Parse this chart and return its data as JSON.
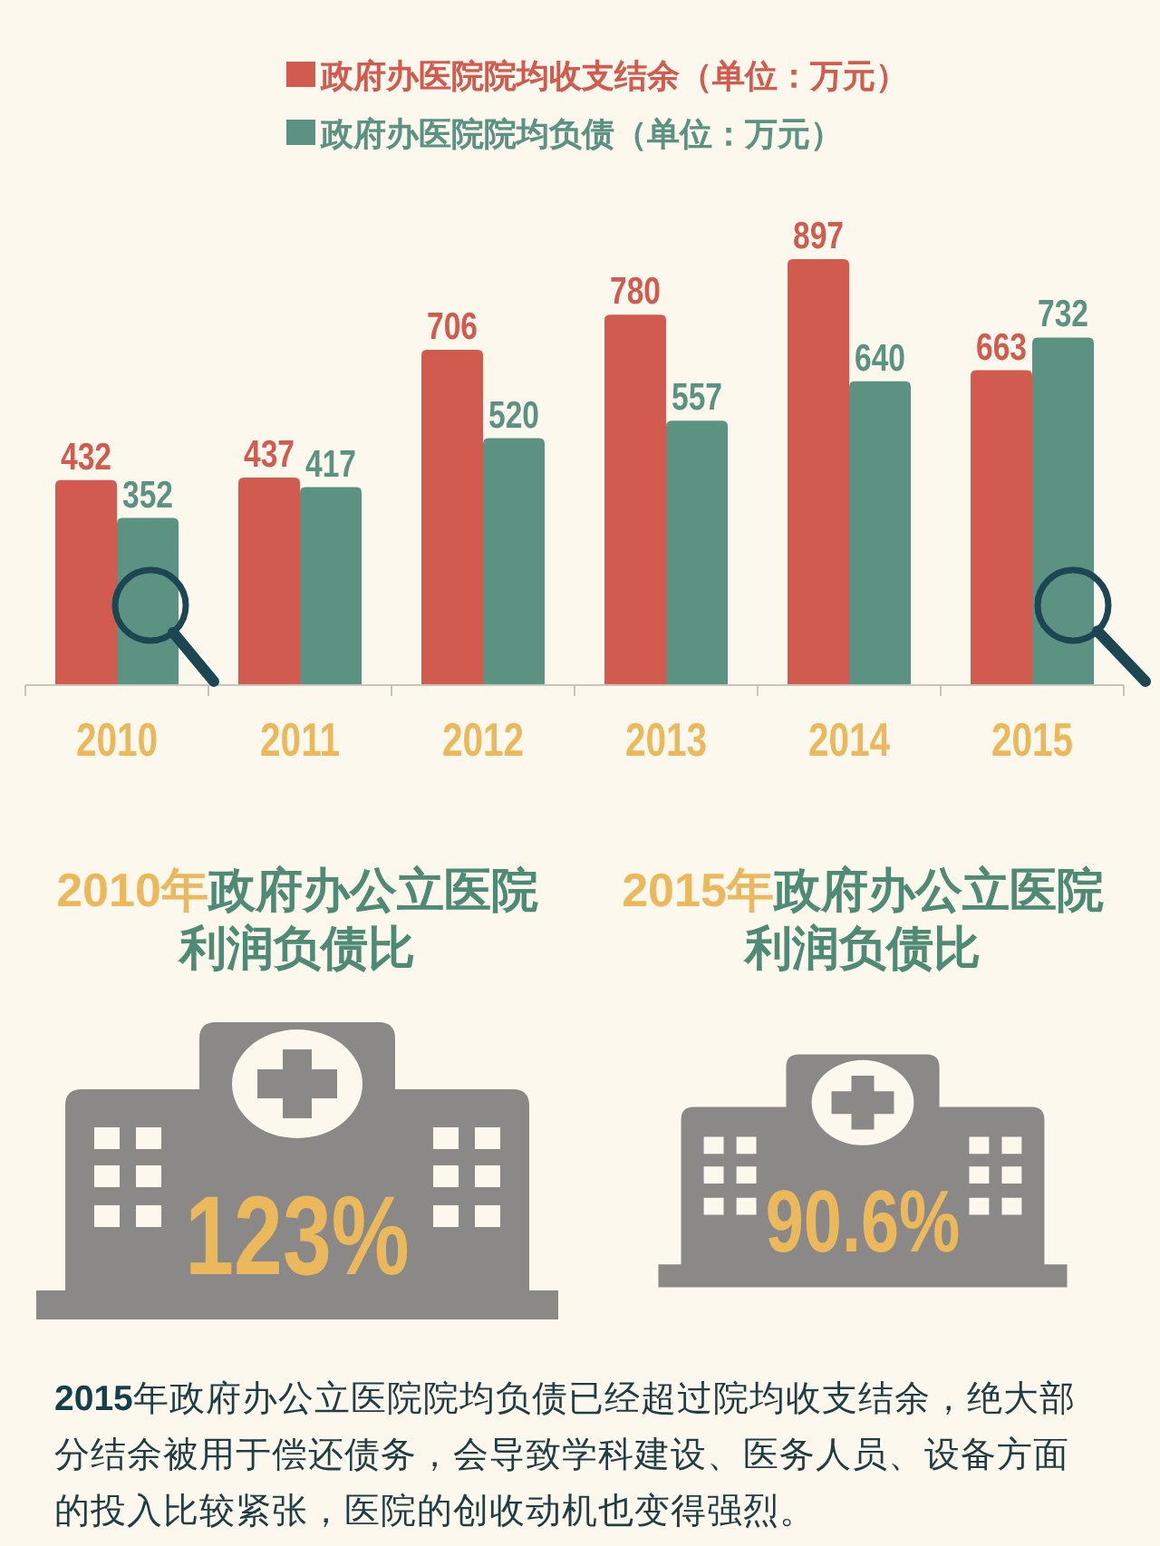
{
  "chart_data": [
    {
      "type": "bar",
      "categories": [
        "2010",
        "2011",
        "2012",
        "2013",
        "2014",
        "2015"
      ],
      "series": [
        {
          "name": "政府办医院院均收支结余（单位：万元）",
          "color": "#d15b4f",
          "values": [
            432,
            437,
            706,
            780,
            897,
            663
          ]
        },
        {
          "name": "政府办医院院均负债（单位：万元）",
          "color": "#5b9282",
          "values": [
            352,
            417,
            520,
            557,
            640,
            732
          ]
        }
      ],
      "data_labels": true,
      "legend": "top"
    },
    {
      "type": "other",
      "title": "2010年政府办公立医院利润负债比",
      "values": [
        123
      ],
      "value_labels": [
        "123%"
      ]
    },
    {
      "type": "other",
      "title": "2015年政府办公立医院利润负债比",
      "values": [
        90.6
      ],
      "value_labels": [
        "90.6%"
      ]
    },
    {
      "type": "other",
      "annotations": [
        "2015年政府办公立医院院均负债已经超过院均收支结余，绝大部分结余被用于偿还债务，会导致学科建设、医务人员、设备方面的投入比较紧张，医院的创收动机也变得强烈。"
      ]
    }
  ]
}
